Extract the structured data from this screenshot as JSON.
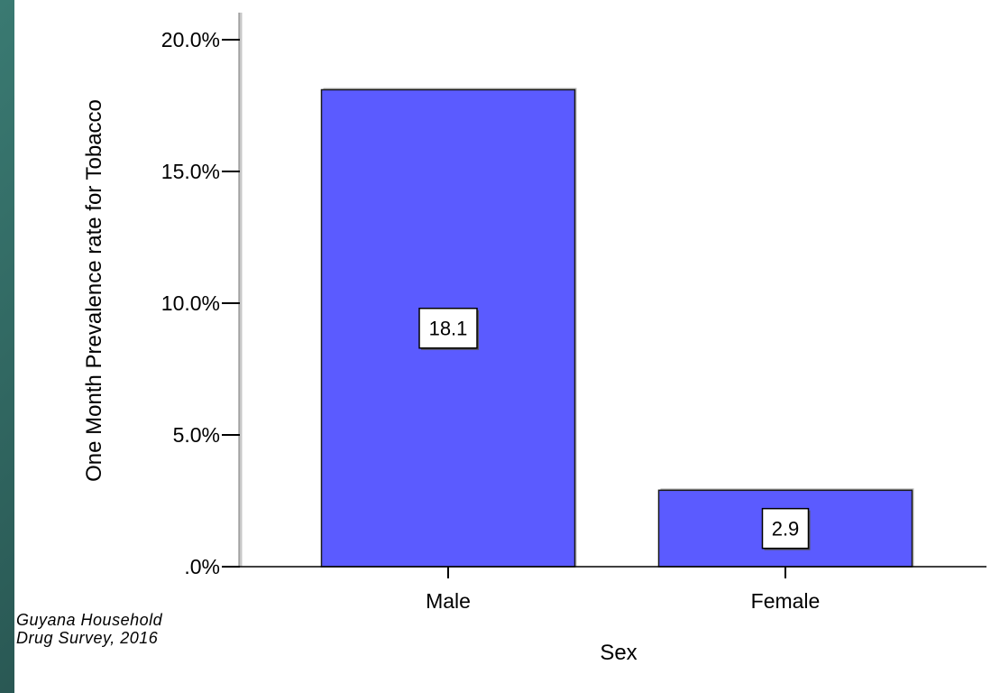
{
  "chart_data": {
    "type": "bar",
    "categories": [
      "Male",
      "Female"
    ],
    "values": [
      18.1,
      2.9
    ],
    "data_labels": [
      "18.1",
      "2.9"
    ],
    "title": "",
    "xlabel": "Sex",
    "ylabel": "One Month Prevalence rate for Tobacco",
    "ylim": [
      0,
      20
    ],
    "yticks": [
      0,
      5,
      10,
      15,
      20
    ],
    "ytick_labels": [
      ".0%",
      "5.0%",
      "10.0%",
      "15.0%",
      "20.0%"
    ],
    "bar_color": "#5b5bff",
    "grid": false,
    "legend": "none"
  },
  "source_note": {
    "line1": "Guyana Household",
    "line2": "Drug Survey, 2016"
  },
  "colors": {
    "background": "#ffffff",
    "frame": "#2c5f5a",
    "bar": "#5b5bff",
    "axis": "#000000"
  }
}
